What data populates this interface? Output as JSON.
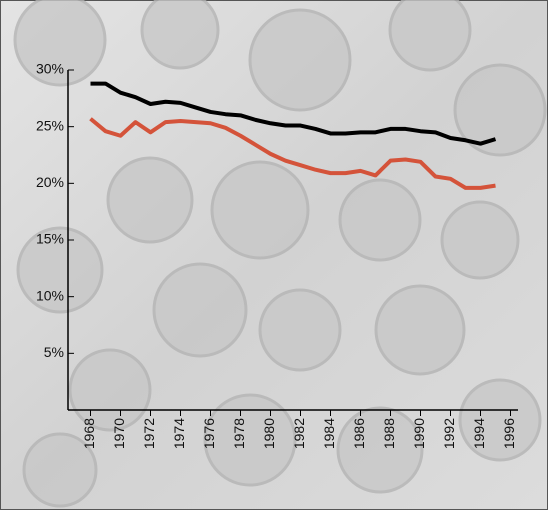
{
  "chart_data": {
    "type": "line",
    "x": [
      1968,
      1969,
      1970,
      1971,
      1972,
      1973,
      1974,
      1975,
      1976,
      1977,
      1978,
      1979,
      1980,
      1981,
      1982,
      1983,
      1984,
      1985,
      1986,
      1987,
      1988,
      1989,
      1990,
      1991,
      1992,
      1993,
      1994,
      1995
    ],
    "series": [
      {
        "color": "#000000",
        "values": [
          28.8,
          28.8,
          28.0,
          27.6,
          27.0,
          27.2,
          27.1,
          26.7,
          26.3,
          26.1,
          26.0,
          25.6,
          25.3,
          25.1,
          25.1,
          24.8,
          24.4,
          24.4,
          24.5,
          24.5,
          24.8,
          24.8,
          24.6,
          24.5,
          24.0,
          23.8,
          23.5,
          23.9
        ]
      },
      {
        "color": "#d4533a",
        "values": [
          25.7,
          24.6,
          24.2,
          25.4,
          24.5,
          25.4,
          25.5,
          25.4,
          25.3,
          24.9,
          24.2,
          23.4,
          22.6,
          22.0,
          21.6,
          21.2,
          20.9,
          20.9,
          21.1,
          20.7,
          22.0,
          22.1,
          21.9,
          20.6,
          20.4,
          19.6,
          19.6,
          19.8
        ]
      }
    ],
    "xlim": [
      1966.5,
      1996.5
    ],
    "xticks": [
      1968,
      1970,
      1972,
      1974,
      1976,
      1978,
      1980,
      1982,
      1984,
      1986,
      1988,
      1990,
      1992,
      1994,
      1996
    ],
    "ylim": [
      0,
      30
    ],
    "yticks": [
      {
        "value": 5,
        "label": "5%"
      },
      {
        "value": 10,
        "label": "10%"
      },
      {
        "value": 15,
        "label": "15%"
      },
      {
        "value": 20,
        "label": "20%"
      },
      {
        "value": 25,
        "label": "25%"
      },
      {
        "value": 30,
        "label": "30%"
      }
    ]
  }
}
